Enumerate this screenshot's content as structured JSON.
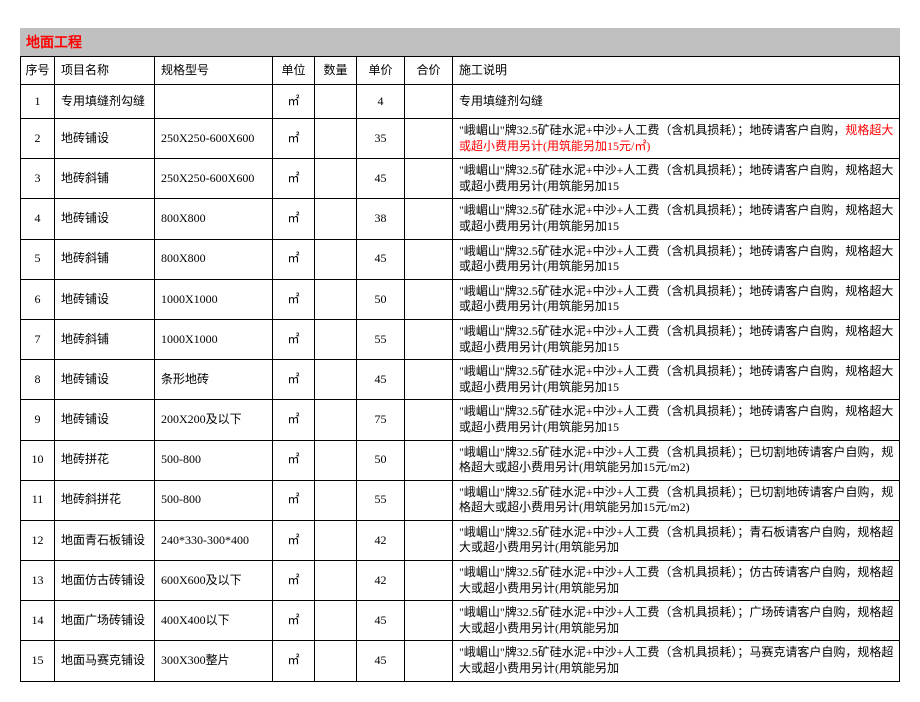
{
  "title": "地面工程",
  "columns": [
    "序号",
    "项目名称",
    "规格型号",
    "单位",
    "数量",
    "单价",
    "合价",
    "施工说明"
  ],
  "unit_symbol": "㎡",
  "rows": [
    {
      "seq": "1",
      "name": "专用填缝剂勾缝",
      "spec": "",
      "price": "4",
      "desc": "专用填缝剂勾缝",
      "red": ""
    },
    {
      "seq": "2",
      "name": "地砖铺设",
      "spec": "250X250-600X600",
      "price": "35",
      "desc": "\"峨嵋山\"牌32.5矿硅水泥+中沙+人工费（含机具损耗）；地砖请客户自购，",
      "red": "规格超大或超小费用另计(用筑能另加15元/㎡)"
    },
    {
      "seq": "3",
      "name": "地砖斜铺",
      "spec": "250X250-600X600",
      "price": "45",
      "desc": "\"峨嵋山\"牌32.5矿硅水泥+中沙+人工费（含机具损耗）；地砖请客户自购，规格超大或超小费用另计(用筑能另加15",
      "red": ""
    },
    {
      "seq": "4",
      "name": "地砖铺设",
      "spec": "800X800",
      "price": "38",
      "desc": "\"峨嵋山\"牌32.5矿硅水泥+中沙+人工费（含机具损耗）；地砖请客户自购，规格超大或超小费用另计(用筑能另加15",
      "red": ""
    },
    {
      "seq": "5",
      "name": "地砖斜铺",
      "spec": "800X800",
      "price": "45",
      "desc": "\"峨嵋山\"牌32.5矿硅水泥+中沙+人工费（含机具损耗）；地砖请客户自购，规格超大或超小费用另计(用筑能另加15",
      "red": ""
    },
    {
      "seq": "6",
      "name": "地砖铺设",
      "spec": "1000X1000",
      "price": "50",
      "desc": "\"峨嵋山\"牌32.5矿硅水泥+中沙+人工费（含机具损耗）；地砖请客户自购，规格超大或超小费用另计(用筑能另加15",
      "red": ""
    },
    {
      "seq": "7",
      "name": "地砖斜铺",
      "spec": "1000X1000",
      "price": "55",
      "desc": "\"峨嵋山\"牌32.5矿硅水泥+中沙+人工费（含机具损耗）；地砖请客户自购，规格超大或超小费用另计(用筑能另加15",
      "red": ""
    },
    {
      "seq": "8",
      "name": "地砖铺设",
      "spec": "条形地砖",
      "price": "45",
      "desc": "\"峨嵋山\"牌32.5矿硅水泥+中沙+人工费（含机具损耗）；地砖请客户自购，规格超大或超小费用另计(用筑能另加15",
      "red": ""
    },
    {
      "seq": "9",
      "name": "地砖铺设",
      "spec": "200X200及以下",
      "price": "75",
      "desc": "\"峨嵋山\"牌32.5矿硅水泥+中沙+人工费（含机具损耗）；地砖请客户自购，规格超大或超小费用另计(用筑能另加15",
      "red": ""
    },
    {
      "seq": "10",
      "name": "地砖拼花",
      "spec": "500-800",
      "price": "50",
      "desc": "\"峨嵋山\"牌32.5矿硅水泥+中沙+人工费（含机具损耗）；已切割地砖请客户自购，规格超大或超小费用另计(用筑能另加15元/m2)",
      "red": ""
    },
    {
      "seq": "11",
      "name": "地砖斜拼花",
      "spec": "500-800",
      "price": "55",
      "desc": "\"峨嵋山\"牌32.5矿硅水泥+中沙+人工费（含机具损耗）；已切割地砖请客户自购，规格超大或超小费用另计(用筑能另加15元/m2)",
      "red": ""
    },
    {
      "seq": "12",
      "name": "地面青石板铺设",
      "spec": "240*330-300*400",
      "price": "42",
      "desc": "\"峨嵋山\"牌32.5矿硅水泥+中沙+人工费（含机具损耗）；青石板请客户自购，规格超大或超小费用另计(用筑能另加",
      "red": ""
    },
    {
      "seq": "13",
      "name": "地面仿古砖铺设",
      "spec": "600X600及以下",
      "price": "42",
      "desc": "\"峨嵋山\"牌32.5矿硅水泥+中沙+人工费（含机具损耗）；仿古砖请客户自购，规格超大或超小费用另计(用筑能另加",
      "red": ""
    },
    {
      "seq": "14",
      "name": "地面广场砖铺设",
      "spec": "400X400以下",
      "price": "45",
      "desc": "\"峨嵋山\"牌32.5矿硅水泥+中沙+人工费（含机具损耗）；广场砖请客户自购，规格超大或超小费用另计(用筑能另加",
      "red": ""
    },
    {
      "seq": "15",
      "name": "地面马赛克铺设",
      "spec": "300X300整片",
      "price": "45",
      "desc": "\"峨嵋山\"牌32.5矿硅水泥+中沙+人工费（含机具损耗）；马赛克请客户自购，规格超大或超小费用另计(用筑能另加",
      "red": ""
    }
  ]
}
